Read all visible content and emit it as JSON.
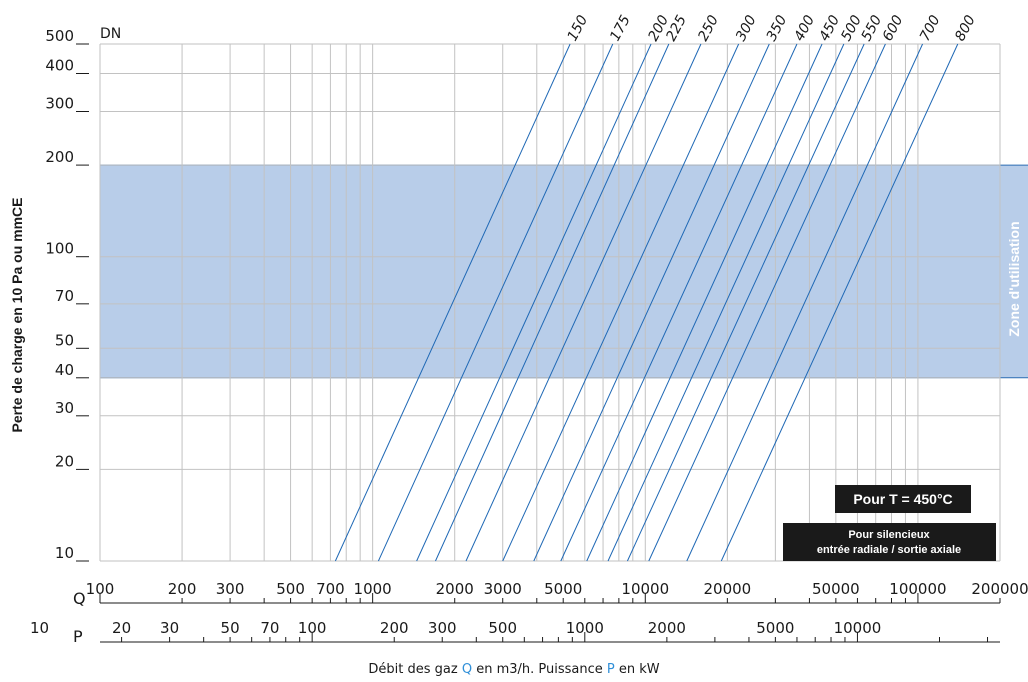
{
  "chart_data": {
    "type": "line",
    "xscale": "log",
    "yscale": "log",
    "xlim": [
      100,
      200000
    ],
    "ylim": [
      10,
      500
    ],
    "ylabel": "Perte de charge en 10 Pa ou mmCE",
    "dn_label": "DN",
    "q_axis_label": "Q",
    "p_axis_label": "P",
    "q_ticks": [
      100,
      200,
      300,
      500,
      700,
      1000,
      2000,
      3000,
      5000,
      10000,
      20000,
      50000,
      100000,
      200000
    ],
    "p_ticks": [
      10,
      20,
      30,
      50,
      70,
      100,
      200,
      300,
      500,
      1000,
      2000,
      5000,
      10000
    ],
    "y_ticks": [
      10,
      20,
      30,
      40,
      50,
      70,
      100,
      200,
      300,
      400,
      500
    ],
    "zone": {
      "y_min": 40,
      "y_max": 200,
      "label": "Zone d'utilisation"
    },
    "series": [
      {
        "name": "150",
        "q_at_10": 730,
        "q_at_500": 5300
      },
      {
        "name": "175",
        "q_at_10": 1050,
        "q_at_500": 7600
      },
      {
        "name": "200",
        "q_at_10": 1450,
        "q_at_500": 10500
      },
      {
        "name": "225",
        "q_at_10": 1700,
        "q_at_500": 12200
      },
      {
        "name": "250",
        "q_at_10": 2200,
        "q_at_500": 16000
      },
      {
        "name": "300",
        "q_at_10": 3000,
        "q_at_500": 22000
      },
      {
        "name": "350",
        "q_at_10": 3900,
        "q_at_500": 28500
      },
      {
        "name": "400",
        "q_at_10": 4900,
        "q_at_500": 36000
      },
      {
        "name": "450",
        "q_at_10": 6100,
        "q_at_500": 44500
      },
      {
        "name": "500",
        "q_at_10": 7300,
        "q_at_500": 53500
      },
      {
        "name": "550",
        "q_at_10": 8600,
        "q_at_500": 63500
      },
      {
        "name": "600",
        "q_at_10": 10300,
        "q_at_500": 76000
      },
      {
        "name": "700",
        "q_at_10": 14200,
        "q_at_500": 104000
      },
      {
        "name": "800",
        "q_at_10": 19000,
        "q_at_500": 140000
      }
    ],
    "notes": {
      "temperature": "Pour T = 450°C",
      "silencer_line1": "Pour silencieux",
      "silencer_line2": "entrée radiale / sortie axiale"
    },
    "caption": {
      "part1": "Débit des gaz ",
      "q": "Q",
      "part2": " en m3/h. Puissance  ",
      "p": "P",
      "part3": " en kW"
    }
  }
}
